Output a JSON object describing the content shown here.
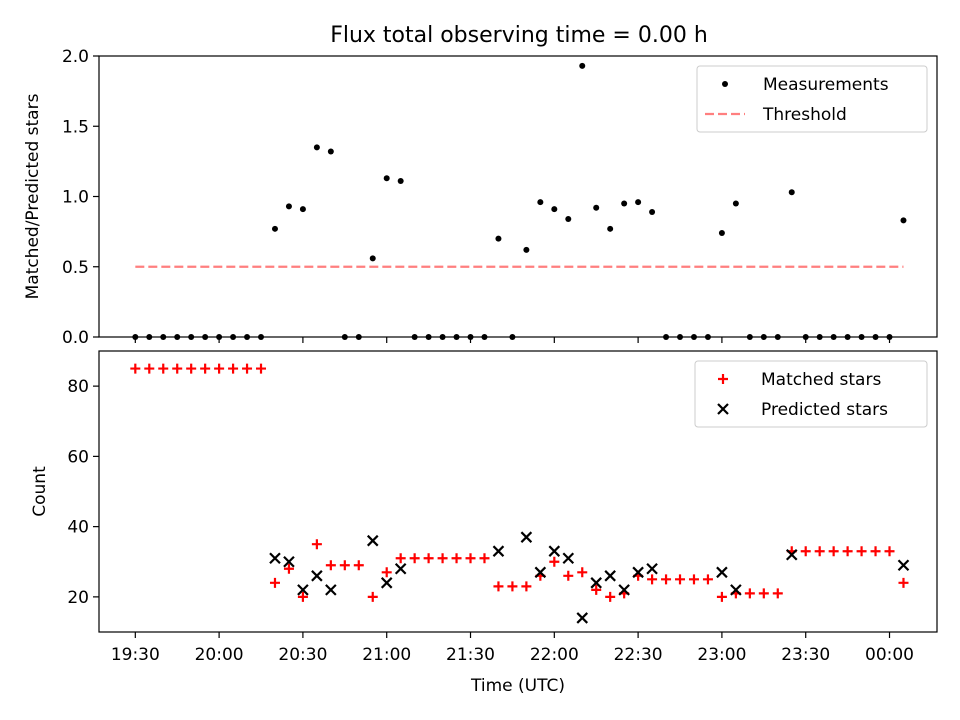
{
  "figure": {
    "title": "Flux total observing time = 0.00 h"
  },
  "chart_data": [
    {
      "type": "scatter",
      "title": "Flux total observing time = 0.00 h",
      "xlabel": "",
      "ylabel": "Matched/Predicted stars",
      "xlim": [
        "19:17",
        "00:17"
      ],
      "ylim": [
        0,
        2.0
      ],
      "yticks": [
        "0.0",
        "0.5",
        "1.0",
        "1.5",
        "2.0"
      ],
      "grid": false,
      "legend": "top-right",
      "series": [
        {
          "name": "Measurements",
          "marker": "dot",
          "color": "#000000",
          "x": [
            "19:30",
            "19:35",
            "19:40",
            "19:45",
            "19:50",
            "19:55",
            "20:00",
            "20:05",
            "20:10",
            "20:15",
            "20:20",
            "20:25",
            "20:30",
            "20:35",
            "20:40",
            "20:45",
            "20:50",
            "20:55",
            "21:00",
            "21:05",
            "21:10",
            "21:15",
            "21:20",
            "21:25",
            "21:30",
            "21:35",
            "21:40",
            "21:45",
            "21:50",
            "21:55",
            "22:00",
            "22:05",
            "22:10",
            "22:15",
            "22:20",
            "22:25",
            "22:30",
            "22:35",
            "22:40",
            "22:45",
            "22:50",
            "22:55",
            "23:00",
            "23:05",
            "23:10",
            "23:15",
            "23:20",
            "23:25",
            "23:30",
            "23:35",
            "23:40",
            "23:45",
            "23:50",
            "23:55",
            "00:00",
            "00:05"
          ],
          "y": [
            0,
            0,
            0,
            0,
            0,
            0,
            0,
            0,
            0,
            0,
            0.77,
            0.93,
            0.91,
            1.35,
            1.32,
            0,
            0,
            0.56,
            1.13,
            1.11,
            0,
            0,
            0,
            0,
            0,
            0,
            0.7,
            0,
            0.62,
            0.96,
            0.91,
            0.84,
            1.93,
            0.92,
            0.77,
            0.95,
            0.96,
            0.89,
            0,
            0,
            0,
            0,
            0.74,
            0.95,
            0,
            0,
            0,
            1.03,
            0,
            0,
            0,
            0,
            0,
            0,
            0,
            0.83
          ]
        },
        {
          "name": "Threshold",
          "style": "dashed",
          "color": "#ff7f7f",
          "x": [
            "19:30",
            "00:05"
          ],
          "y": [
            0.5,
            0.5
          ]
        }
      ]
    },
    {
      "type": "scatter",
      "title": "",
      "xlabel": "Time (UTC)",
      "ylabel": "Count",
      "xlim": [
        "19:17",
        "00:17"
      ],
      "ylim": [
        10,
        90
      ],
      "yticks": [
        "20",
        "40",
        "60",
        "80"
      ],
      "xticks": [
        "19:30",
        "20:00",
        "20:30",
        "21:00",
        "21:30",
        "22:00",
        "22:30",
        "23:00",
        "23:30",
        "00:00"
      ],
      "grid": false,
      "legend": "top-right",
      "series": [
        {
          "name": "Matched stars",
          "marker": "plus",
          "color": "#ff0000",
          "x": [
            "19:30",
            "19:35",
            "19:40",
            "19:45",
            "19:50",
            "19:55",
            "20:00",
            "20:05",
            "20:10",
            "20:15",
            "20:20",
            "20:25",
            "20:30",
            "20:35",
            "20:40",
            "20:45",
            "20:50",
            "20:55",
            "21:00",
            "21:05",
            "21:10",
            "21:15",
            "21:20",
            "21:25",
            "21:30",
            "21:35",
            "21:40",
            "21:45",
            "21:50",
            "21:55",
            "22:00",
            "22:05",
            "22:10",
            "22:15",
            "22:20",
            "22:25",
            "22:30",
            "22:35",
            "22:40",
            "22:45",
            "22:50",
            "22:55",
            "23:00",
            "23:05",
            "23:10",
            "23:15",
            "23:20",
            "23:25",
            "23:30",
            "23:35",
            "23:40",
            "23:45",
            "23:50",
            "23:55",
            "00:00",
            "00:05"
          ],
          "y": [
            85,
            85,
            85,
            85,
            85,
            85,
            85,
            85,
            85,
            85,
            24,
            28,
            20,
            35,
            29,
            29,
            29,
            20,
            27,
            31,
            31,
            31,
            31,
            31,
            31,
            31,
            23,
            23,
            23,
            26,
            30,
            26,
            27,
            22,
            20,
            21,
            26,
            25,
            25,
            25,
            25,
            25,
            20,
            21,
            21,
            21,
            21,
            33,
            33,
            33,
            33,
            33,
            33,
            33,
            33,
            24
          ]
        },
        {
          "name": "Predicted stars",
          "marker": "x",
          "color": "#000000",
          "x": [
            "20:20",
            "20:25",
            "20:30",
            "20:35",
            "20:40",
            "20:55",
            "21:00",
            "21:05",
            "21:40",
            "21:50",
            "21:55",
            "22:00",
            "22:05",
            "22:10",
            "22:15",
            "22:20",
            "22:25",
            "22:30",
            "22:35",
            "23:00",
            "23:05",
            "23:25",
            "00:05"
          ],
          "y": [
            31,
            30,
            22,
            26,
            22,
            36,
            24,
            28,
            33,
            37,
            27,
            33,
            31,
            14,
            24,
            26,
            22,
            27,
            28,
            27,
            22,
            32,
            29
          ]
        }
      ]
    }
  ]
}
